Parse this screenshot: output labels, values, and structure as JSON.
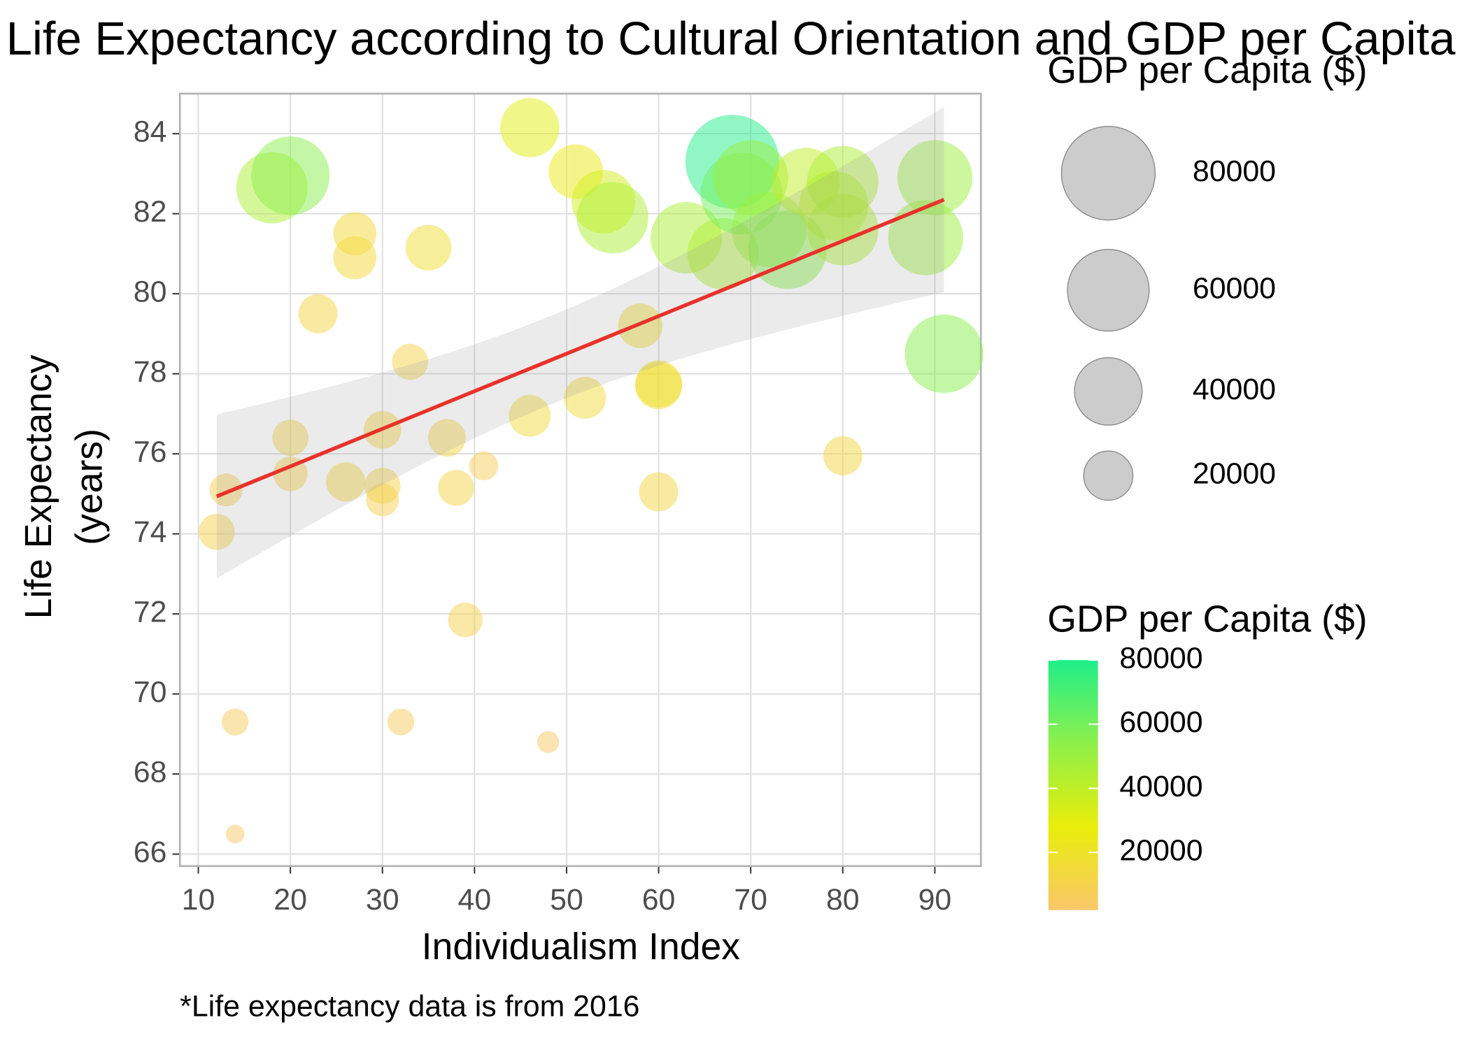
{
  "chart_data": {
    "type": "scatter",
    "title": "Life Expectancy according to Cultural Orientation and GDP per Capita",
    "x_label": "Individualism Index",
    "y_label": [
      "Life Expectancy",
      "(years)"
    ],
    "caption": "*Life expectancy data is from 2016",
    "size_legend_title": "GDP per Capita ($)",
    "color_legend_title": "GDP per Capita ($)",
    "legend_ticks": [
      80000,
      60000,
      40000,
      20000
    ],
    "colorscale": [
      "#f9c76a",
      "#e9ed0a",
      "#8ef04a",
      "#1fee8a"
    ],
    "trend_color": "#e8322a",
    "grid": true,
    "xlim": [
      8,
      95
    ],
    "ylim": [
      65.7,
      85
    ],
    "xticks": [
      10,
      20,
      30,
      40,
      50,
      60,
      70,
      80,
      90
    ],
    "yticks": [
      66,
      68,
      70,
      72,
      74,
      76,
      78,
      80,
      82,
      84
    ],
    "x": [
      12,
      13,
      14,
      14,
      18,
      20,
      20,
      20,
      23,
      26,
      27,
      27,
      30,
      30,
      30,
      32,
      33,
      35,
      37,
      38,
      39,
      41,
      46,
      46,
      48,
      51,
      52,
      54,
      55,
      58,
      60,
      60,
      60,
      63,
      67,
      68,
      69,
      70,
      72,
      74,
      76,
      79,
      80,
      80,
      80,
      89,
      90,
      91
    ],
    "y": [
      74.05,
      75.1,
      69.3,
      66.5,
      82.65,
      82.95,
      76.4,
      75.5,
      79.5,
      75.3,
      81.5,
      80.9,
      76.6,
      75.2,
      74.85,
      69.3,
      78.3,
      81.15,
      76.4,
      75.15,
      71.85,
      75.7,
      84.15,
      76.95,
      68.8,
      83.05,
      77.4,
      82.3,
      81.9,
      79.2,
      77.75,
      77.7,
      75.05,
      81.4,
      81.0,
      83.3,
      82.5,
      82.9,
      81.6,
      81.1,
      82.8,
      82.2,
      82.8,
      81.6,
      75.95,
      81.4,
      82.9,
      78.5
    ],
    "size": [
      10000,
      8000,
      5000,
      2000,
      45000,
      55000,
      10000,
      9000,
      12000,
      12000,
      15000,
      15000,
      11000,
      10000,
      8000,
      5000,
      10000,
      17000,
      11000,
      10000,
      9000,
      6000,
      30000,
      14000,
      3000,
      25000,
      14000,
      35000,
      45000,
      16000,
      18000,
      18000,
      12000,
      45000,
      45000,
      80000,
      60000,
      50000,
      50000,
      55000,
      40000,
      42000,
      45000,
      45000,
      12000,
      50000,
      50000,
      55000
    ]
  }
}
